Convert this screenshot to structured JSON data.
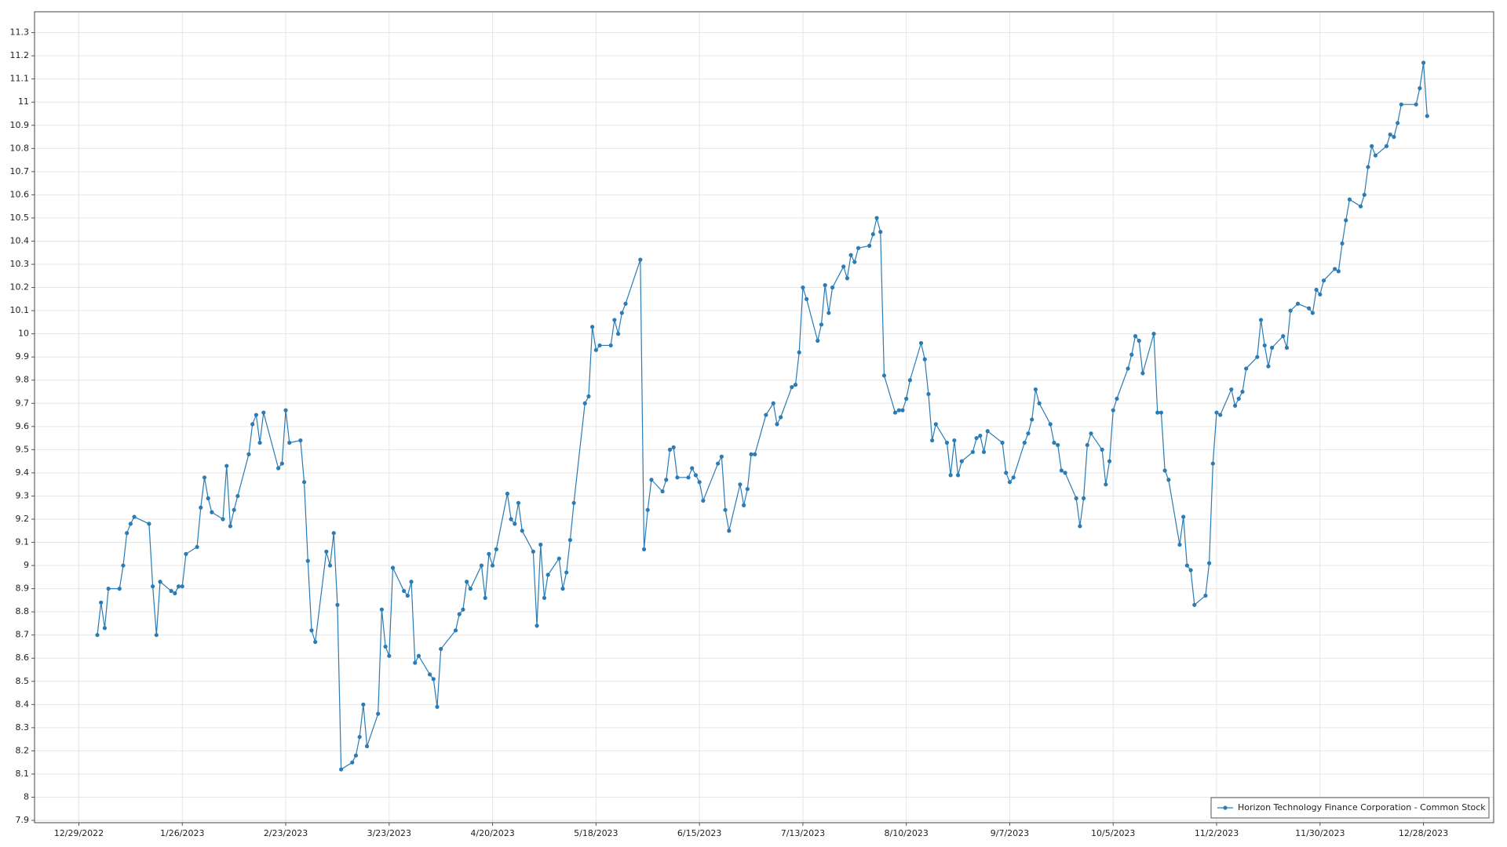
{
  "chart_data": {
    "type": "line",
    "x": [
      "1/3/2023",
      "1/4/2023",
      "1/5/2023",
      "1/6/2023",
      "1/9/2023",
      "1/10/2023",
      "1/11/2023",
      "1/12/2023",
      "1/13/2023",
      "1/17/2023",
      "1/18/2023",
      "1/19/2023",
      "1/20/2023",
      "1/23/2023",
      "1/24/2023",
      "1/25/2023",
      "1/26/2023",
      "1/27/2023",
      "1/30/2023",
      "1/31/2023",
      "2/1/2023",
      "2/2/2023",
      "2/3/2023",
      "2/6/2023",
      "2/7/2023",
      "2/8/2023",
      "2/9/2023",
      "2/10/2023",
      "2/13/2023",
      "2/14/2023",
      "2/15/2023",
      "2/16/2023",
      "2/17/2023",
      "2/21/2023",
      "2/22/2023",
      "2/23/2023",
      "2/24/2023",
      "2/27/2023",
      "2/28/2023",
      "3/1/2023",
      "3/2/2023",
      "3/3/2023",
      "3/6/2023",
      "3/7/2023",
      "3/8/2023",
      "3/9/2023",
      "3/10/2023",
      "3/13/2023",
      "3/14/2023",
      "3/15/2023",
      "3/16/2023",
      "3/17/2023",
      "3/20/2023",
      "3/21/2023",
      "3/22/2023",
      "3/23/2023",
      "3/24/2023",
      "3/27/2023",
      "3/28/2023",
      "3/29/2023",
      "3/30/2023",
      "3/31/2023",
      "4/3/2023",
      "4/4/2023",
      "4/5/2023",
      "4/6/2023",
      "4/10/2023",
      "4/11/2023",
      "4/12/2023",
      "4/13/2023",
      "4/14/2023",
      "4/17/2023",
      "4/18/2023",
      "4/19/2023",
      "4/20/2023",
      "4/21/2023",
      "4/24/2023",
      "4/25/2023",
      "4/26/2023",
      "4/27/2023",
      "4/28/2023",
      "5/1/2023",
      "5/2/2023",
      "5/3/2023",
      "5/4/2023",
      "5/5/2023",
      "5/8/2023",
      "5/9/2023",
      "5/10/2023",
      "5/11/2023",
      "5/12/2023",
      "5/15/2023",
      "5/16/2023",
      "5/17/2023",
      "5/18/2023",
      "5/19/2023",
      "5/22/2023",
      "5/23/2023",
      "5/24/2023",
      "5/25/2023",
      "5/26/2023",
      "5/30/2023",
      "5/31/2023",
      "6/1/2023",
      "6/2/2023",
      "6/5/2023",
      "6/6/2023",
      "6/7/2023",
      "6/8/2023",
      "6/9/2023",
      "6/12/2023",
      "6/13/2023",
      "6/14/2023",
      "6/15/2023",
      "6/16/2023",
      "6/20/2023",
      "6/21/2023",
      "6/22/2023",
      "6/23/2023",
      "6/26/2023",
      "6/27/2023",
      "6/28/2023",
      "6/29/2023",
      "6/30/2023",
      "7/3/2023",
      "7/5/2023",
      "7/6/2023",
      "7/7/2023",
      "7/10/2023",
      "7/11/2023",
      "7/12/2023",
      "7/13/2023",
      "7/14/2023",
      "7/17/2023",
      "7/18/2023",
      "7/19/2023",
      "7/20/2023",
      "7/21/2023",
      "7/24/2023",
      "7/25/2023",
      "7/26/2023",
      "7/27/2023",
      "7/28/2023",
      "7/31/2023",
      "8/1/2023",
      "8/2/2023",
      "8/3/2023",
      "8/4/2023",
      "8/7/2023",
      "8/8/2023",
      "8/9/2023",
      "8/10/2023",
      "8/11/2023",
      "8/14/2023",
      "8/15/2023",
      "8/16/2023",
      "8/17/2023",
      "8/18/2023",
      "8/21/2023",
      "8/22/2023",
      "8/23/2023",
      "8/24/2023",
      "8/25/2023",
      "8/28/2023",
      "8/29/2023",
      "8/30/2023",
      "8/31/2023",
      "9/1/2023",
      "9/5/2023",
      "9/6/2023",
      "9/7/2023",
      "9/8/2023",
      "9/11/2023",
      "9/12/2023",
      "9/13/2023",
      "9/14/2023",
      "9/15/2023",
      "9/18/2023",
      "9/19/2023",
      "9/20/2023",
      "9/21/2023",
      "9/22/2023",
      "9/25/2023",
      "9/26/2023",
      "9/27/2023",
      "9/28/2023",
      "9/29/2023",
      "10/2/2023",
      "10/3/2023",
      "10/4/2023",
      "10/5/2023",
      "10/6/2023",
      "10/9/2023",
      "10/10/2023",
      "10/11/2023",
      "10/12/2023",
      "10/13/2023",
      "10/16/2023",
      "10/17/2023",
      "10/18/2023",
      "10/19/2023",
      "10/20/2023",
      "10/23/2023",
      "10/24/2023",
      "10/25/2023",
      "10/26/2023",
      "10/27/2023",
      "10/30/2023",
      "10/31/2023",
      "11/1/2023",
      "11/2/2023",
      "11/3/2023",
      "11/6/2023",
      "11/7/2023",
      "11/8/2023",
      "11/9/2023",
      "11/10/2023",
      "11/13/2023",
      "11/14/2023",
      "11/15/2023",
      "11/16/2023",
      "11/17/2023",
      "11/20/2023",
      "11/21/2023",
      "11/22/2023",
      "11/24/2023",
      "11/27/2023",
      "11/28/2023",
      "11/29/2023",
      "11/30/2023",
      "12/1/2023",
      "12/4/2023",
      "12/5/2023",
      "12/6/2023",
      "12/7/2023",
      "12/8/2023",
      "12/11/2023",
      "12/12/2023",
      "12/13/2023",
      "12/14/2023",
      "12/15/2023",
      "12/18/2023",
      "12/19/2023",
      "12/20/2023",
      "12/21/2023",
      "12/22/2023",
      "12/26/2023",
      "12/27/2023",
      "12/28/2023",
      "12/29/2023"
    ],
    "series": [
      {
        "name": "Horizon Technology Finance Corporation - Common Stock",
        "color": "#2b7bb4",
        "values": [
          8.7,
          8.84,
          8.73,
          8.9,
          8.9,
          9.0,
          9.14,
          9.18,
          9.21,
          9.18,
          8.91,
          8.7,
          8.93,
          8.89,
          8.88,
          8.91,
          8.91,
          9.05,
          9.08,
          9.25,
          9.38,
          9.29,
          9.23,
          9.2,
          9.43,
          9.17,
          9.24,
          9.3,
          9.48,
          9.61,
          9.65,
          9.53,
          9.66,
          9.42,
          9.44,
          9.67,
          9.53,
          9.54,
          9.36,
          9.02,
          8.72,
          8.67,
          9.06,
          9.0,
          9.14,
          8.83,
          8.12,
          8.15,
          8.18,
          8.26,
          8.4,
          8.22,
          8.36,
          8.81,
          8.65,
          8.61,
          8.99,
          8.89,
          8.87,
          8.93,
          8.58,
          8.61,
          8.53,
          8.51,
          8.39,
          8.64,
          8.72,
          8.79,
          8.81,
          8.93,
          8.9,
          9.0,
          8.86,
          9.05,
          9.0,
          9.07,
          9.31,
          9.2,
          9.18,
          9.27,
          9.15,
          9.06,
          8.74,
          9.09,
          8.86,
          8.96,
          9.03,
          8.9,
          8.97,
          9.11,
          9.27,
          9.7,
          9.73,
          10.03,
          9.93,
          9.95,
          9.95,
          10.06,
          10.0,
          10.09,
          10.13,
          10.32,
          9.07,
          9.24,
          9.37,
          9.32,
          9.37,
          9.5,
          9.51,
          9.38,
          9.38,
          9.42,
          9.39,
          9.36,
          9.28,
          9.44,
          9.47,
          9.24,
          9.15,
          9.35,
          9.26,
          9.33,
          9.48,
          9.48,
          9.65,
          9.7,
          9.61,
          9.64,
          9.77,
          9.78,
          9.92,
          10.2,
          10.15,
          9.97,
          10.04,
          10.21,
          10.09,
          10.2,
          10.29,
          10.24,
          10.34,
          10.31,
          10.37,
          10.38,
          10.43,
          10.5,
          10.44,
          9.82,
          9.66,
          9.67,
          9.67,
          9.72,
          9.8,
          9.96,
          9.89,
          9.74,
          9.54,
          9.61,
          9.53,
          9.39,
          9.54,
          9.39,
          9.45,
          9.49,
          9.55,
          9.56,
          9.49,
          9.58,
          9.53,
          9.4,
          9.36,
          9.38,
          9.53,
          9.57,
          9.63,
          9.76,
          9.7,
          9.61,
          9.53,
          9.52,
          9.41,
          9.4,
          9.29,
          9.17,
          9.29,
          9.52,
          9.57,
          9.5,
          9.35,
          9.45,
          9.67,
          9.72,
          9.85,
          9.91,
          9.99,
          9.97,
          9.83,
          10.0,
          9.66,
          9.66,
          9.41,
          9.37,
          9.09,
          9.21,
          9.0,
          8.98,
          8.83,
          8.87,
          9.01,
          9.44,
          9.66,
          9.65,
          9.76,
          9.69,
          9.72,
          9.75,
          9.85,
          9.9,
          10.06,
          9.95,
          9.86,
          9.94,
          9.99,
          9.94,
          10.1,
          10.13,
          10.11,
          10.09,
          10.19,
          10.17,
          10.23,
          10.28,
          10.27,
          10.39,
          10.49,
          10.58,
          10.55,
          10.6,
          10.72,
          10.81,
          10.77,
          10.81,
          10.86,
          10.85,
          10.91,
          10.99,
          10.99,
          11.06,
          11.17,
          10.94
        ]
      }
    ],
    "xlim": [
      "12/17/2022",
      "1/16/2024"
    ],
    "xticks": [
      "12/29/2022",
      "1/26/2023",
      "2/23/2023",
      "3/23/2023",
      "4/20/2023",
      "5/18/2023",
      "6/15/2023",
      "7/13/2023",
      "8/10/2023",
      "9/7/2023",
      "10/5/2023",
      "11/2/2023",
      "11/30/2023",
      "12/28/2023"
    ],
    "ylim": [
      7.89,
      11.39
    ],
    "yticks": [
      7.9,
      8,
      8.1,
      8.2,
      8.3,
      8.4,
      8.5,
      8.6,
      8.7,
      8.8,
      8.9,
      9,
      9.1,
      9.2,
      9.3,
      9.4,
      9.5,
      9.6,
      9.7,
      9.8,
      9.9,
      10,
      10.1,
      10.2,
      10.3,
      10.4,
      10.5,
      10.6,
      10.7,
      10.8,
      10.9,
      11,
      11.1,
      11.2,
      11.3
    ],
    "grid": true,
    "legend": "lower right",
    "markers": true
  }
}
